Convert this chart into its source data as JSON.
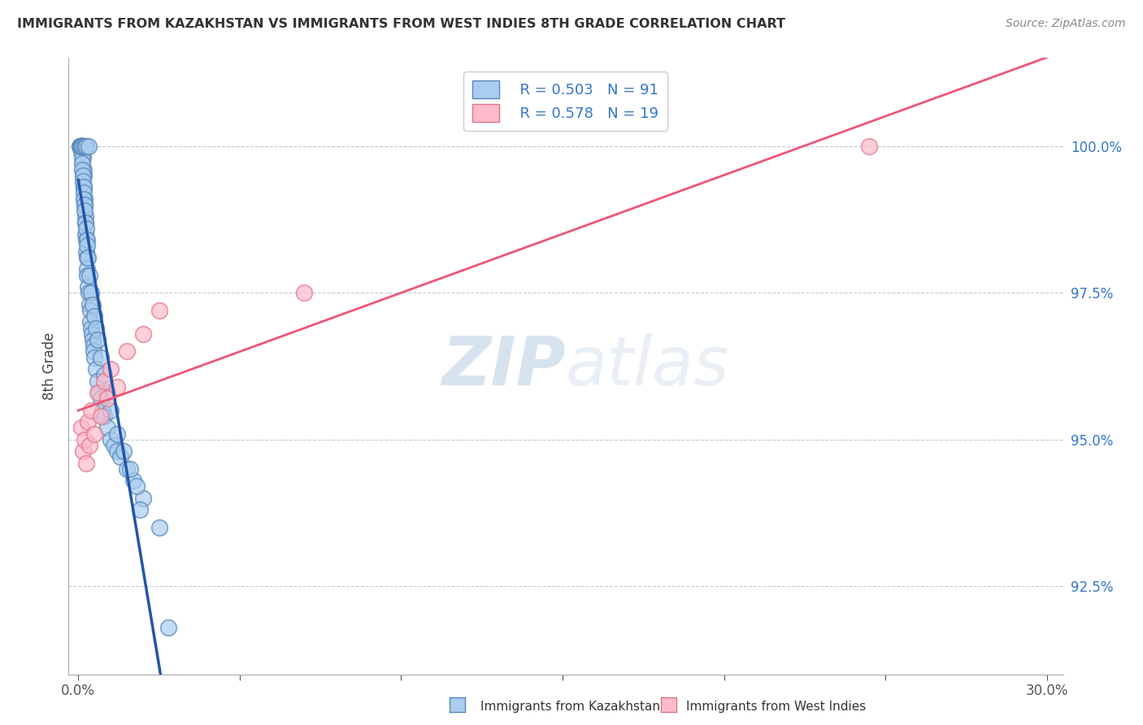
{
  "title": "IMMIGRANTS FROM KAZAKHSTAN VS IMMIGRANTS FROM WEST INDIES 8TH GRADE CORRELATION CHART",
  "source_text": "Source: ZipAtlas.com",
  "ylabel": "8th Grade",
  "xlim": [
    -0.3,
    30.5
  ],
  "ylim": [
    91.0,
    101.5
  ],
  "yticks": [
    92.5,
    95.0,
    97.5,
    100.0
  ],
  "ytick_labels": [
    "92.5%",
    "95.0%",
    "97.5%",
    "100.0%"
  ],
  "xtick_left": "0.0%",
  "xtick_right": "30.0%",
  "series1_color_face": "#aaccee",
  "series1_color_edge": "#5588bb",
  "series2_color_face": "#ffbbcc",
  "series2_color_edge": "#dd7788",
  "series1_label": "Immigrants from Kazakhstan",
  "series2_label": "Immigrants from West Indies",
  "legend_R1": "R = 0.503",
  "legend_N1": "N = 91",
  "legend_R2": "R = 0.578",
  "legend_N2": "N = 19",
  "watermark": "ZIPatlas",
  "background_color": "#ffffff",
  "trend1_color": "#2255aa",
  "trend2_color": "#ee5577",
  "kazakhstan_x": [
    0.05,
    0.06,
    0.07,
    0.08,
    0.09,
    0.1,
    0.11,
    0.12,
    0.13,
    0.14,
    0.15,
    0.16,
    0.17,
    0.18,
    0.19,
    0.2,
    0.21,
    0.22,
    0.23,
    0.24,
    0.25,
    0.26,
    0.27,
    0.28,
    0.3,
    0.32,
    0.34,
    0.36,
    0.38,
    0.4,
    0.42,
    0.44,
    0.46,
    0.48,
    0.5,
    0.55,
    0.6,
    0.65,
    0.7,
    0.75,
    0.8,
    0.9,
    1.0,
    1.1,
    1.2,
    1.3,
    1.5,
    1.7,
    2.0,
    2.5,
    0.07,
    0.08,
    0.09,
    0.1,
    0.11,
    0.12,
    0.13,
    0.14,
    0.15,
    0.16,
    0.17,
    0.18,
    0.19,
    0.2,
    0.22,
    0.24,
    0.26,
    0.28,
    0.3,
    0.35,
    0.4,
    0.45,
    0.5,
    0.55,
    0.6,
    0.7,
    0.8,
    0.9,
    1.0,
    1.2,
    1.4,
    1.6,
    1.8,
    0.06,
    0.09,
    0.13,
    0.16,
    0.21,
    0.25,
    0.33,
    1.9,
    2.8
  ],
  "kazakhstan_y": [
    100.0,
    100.0,
    100.0,
    100.0,
    100.0,
    100.0,
    100.0,
    100.0,
    100.0,
    100.0,
    99.8,
    99.6,
    99.5,
    99.3,
    99.1,
    99.0,
    98.8,
    98.7,
    98.5,
    98.4,
    98.2,
    98.1,
    97.9,
    97.8,
    97.6,
    97.5,
    97.3,
    97.2,
    97.0,
    96.9,
    96.8,
    96.7,
    96.6,
    96.5,
    96.4,
    96.2,
    96.0,
    95.8,
    95.7,
    95.5,
    95.4,
    95.2,
    95.0,
    94.9,
    94.8,
    94.7,
    94.5,
    94.3,
    94.0,
    93.5,
    100.0,
    100.0,
    100.0,
    99.9,
    99.8,
    99.7,
    99.6,
    99.5,
    99.4,
    99.3,
    99.2,
    99.1,
    99.0,
    98.9,
    98.7,
    98.6,
    98.4,
    98.3,
    98.1,
    97.8,
    97.5,
    97.3,
    97.1,
    96.9,
    96.7,
    96.4,
    96.1,
    95.8,
    95.5,
    95.1,
    94.8,
    94.5,
    94.2,
    100.0,
    100.0,
    100.0,
    100.0,
    100.0,
    100.0,
    100.0,
    93.8,
    91.8
  ],
  "westindies_x": [
    0.1,
    0.15,
    0.2,
    0.25,
    0.3,
    0.35,
    0.4,
    0.5,
    0.6,
    0.7,
    0.8,
    0.9,
    1.0,
    1.2,
    1.5,
    2.0,
    2.5,
    7.0,
    24.5
  ],
  "westindies_y": [
    95.2,
    94.8,
    95.0,
    94.6,
    95.3,
    94.9,
    95.5,
    95.1,
    95.8,
    95.4,
    96.0,
    95.7,
    96.2,
    95.9,
    96.5,
    96.8,
    97.2,
    97.5,
    100.0
  ]
}
